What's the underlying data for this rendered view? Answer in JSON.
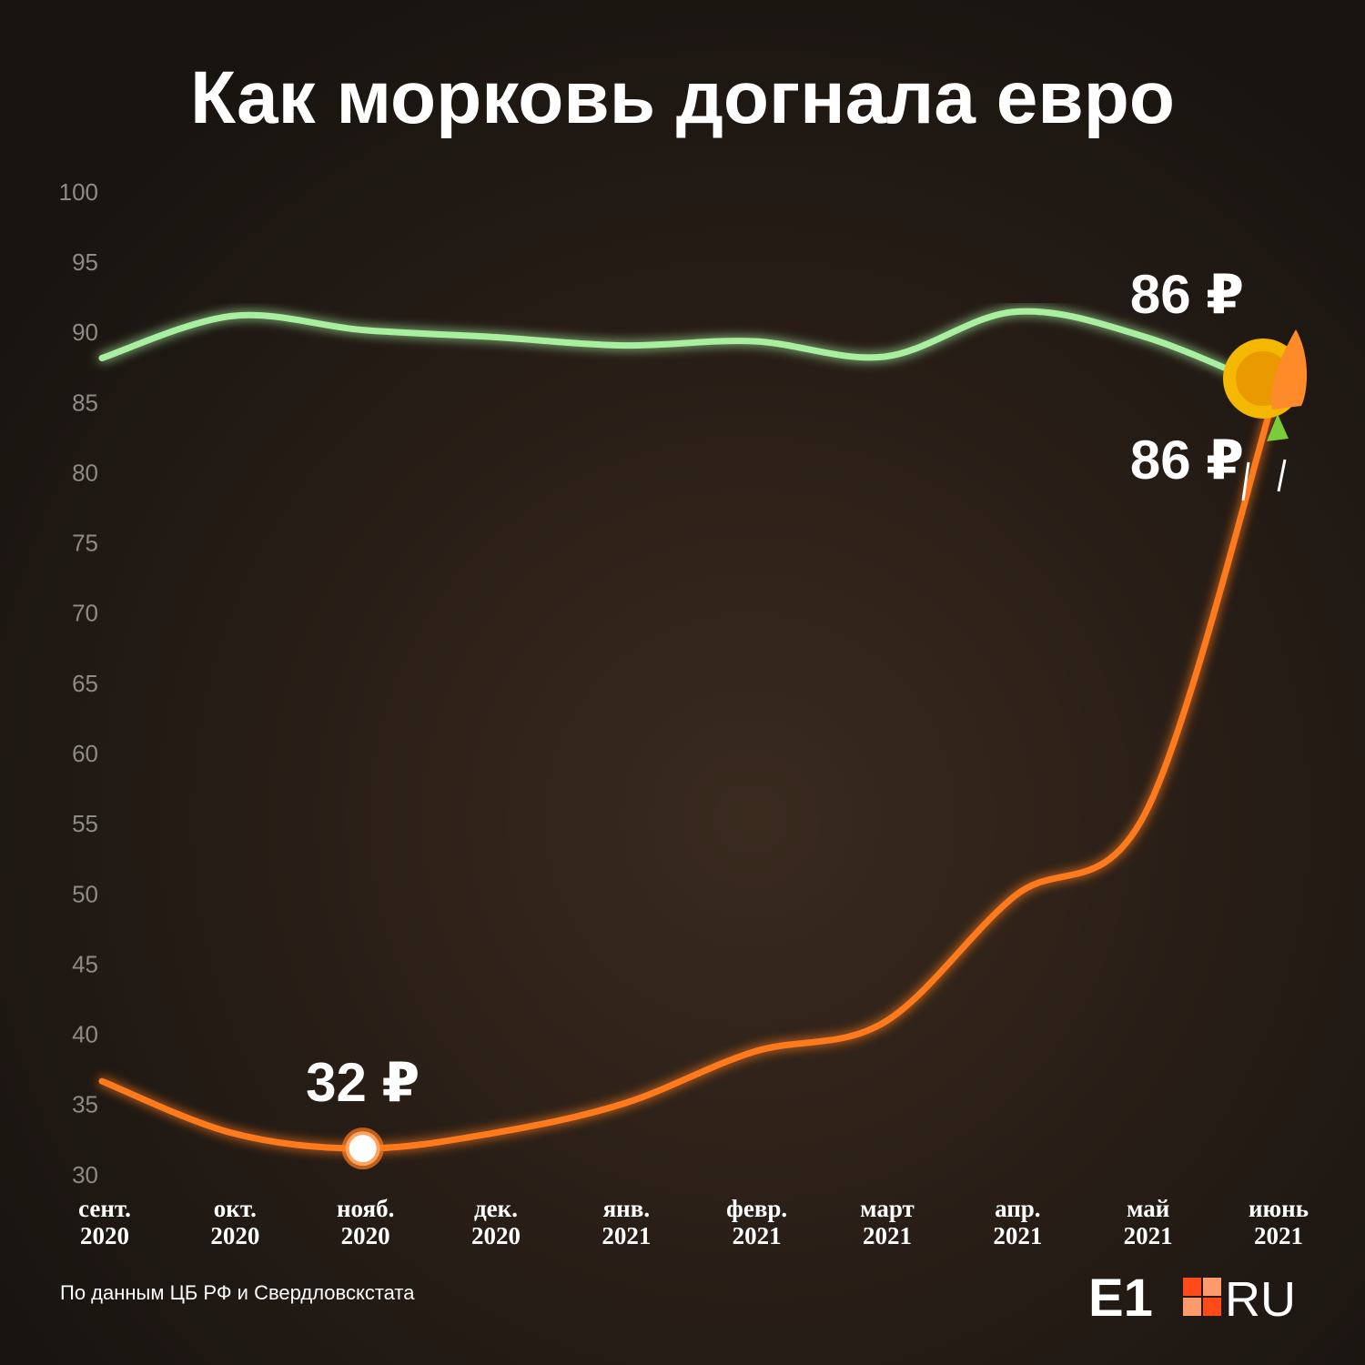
{
  "chart_data": {
    "type": "line",
    "title": "Как морковь догнала евро",
    "categories": [
      [
        "сент.",
        "2020"
      ],
      [
        "окт.",
        "2020"
      ],
      [
        "нояб.",
        "2020"
      ],
      [
        "дек.",
        "2020"
      ],
      [
        "янв.",
        "2021"
      ],
      [
        "февр.",
        "2021"
      ],
      [
        "март",
        "2021"
      ],
      [
        "апр.",
        "2021"
      ],
      [
        "май",
        "2021"
      ],
      [
        "июнь",
        "2021"
      ]
    ],
    "series": [
      {
        "name": null,
        "color": "#a8f0a0",
        "values": [
          88.3,
          91.3,
          90.3,
          89.8,
          89.2,
          89.5,
          88.4,
          91.6,
          89.8,
          86
        ],
        "value_labels": [
          null,
          null,
          null,
          null,
          null,
          null,
          null,
          null,
          null,
          "86 ₽"
        ]
      },
      {
        "name": null,
        "color": "#ff7a1a",
        "values": [
          36.8,
          33.1,
          32,
          33.1,
          35.2,
          38.9,
          41,
          50,
          55.9,
          86
        ],
        "value_labels": [
          null,
          null,
          "32 ₽",
          null,
          null,
          null,
          null,
          null,
          null,
          "86 ₽"
        ]
      }
    ],
    "ylim": [
      30,
      100
    ],
    "yticks": [
      30,
      35,
      40,
      45,
      50,
      55,
      60,
      65,
      70,
      75,
      80,
      85,
      90,
      95,
      100
    ],
    "grid": false,
    "source": "По данным ЦБ РФ и Свердловскстата",
    "logo": {
      "left": "E1",
      "right": "RU"
    }
  }
}
